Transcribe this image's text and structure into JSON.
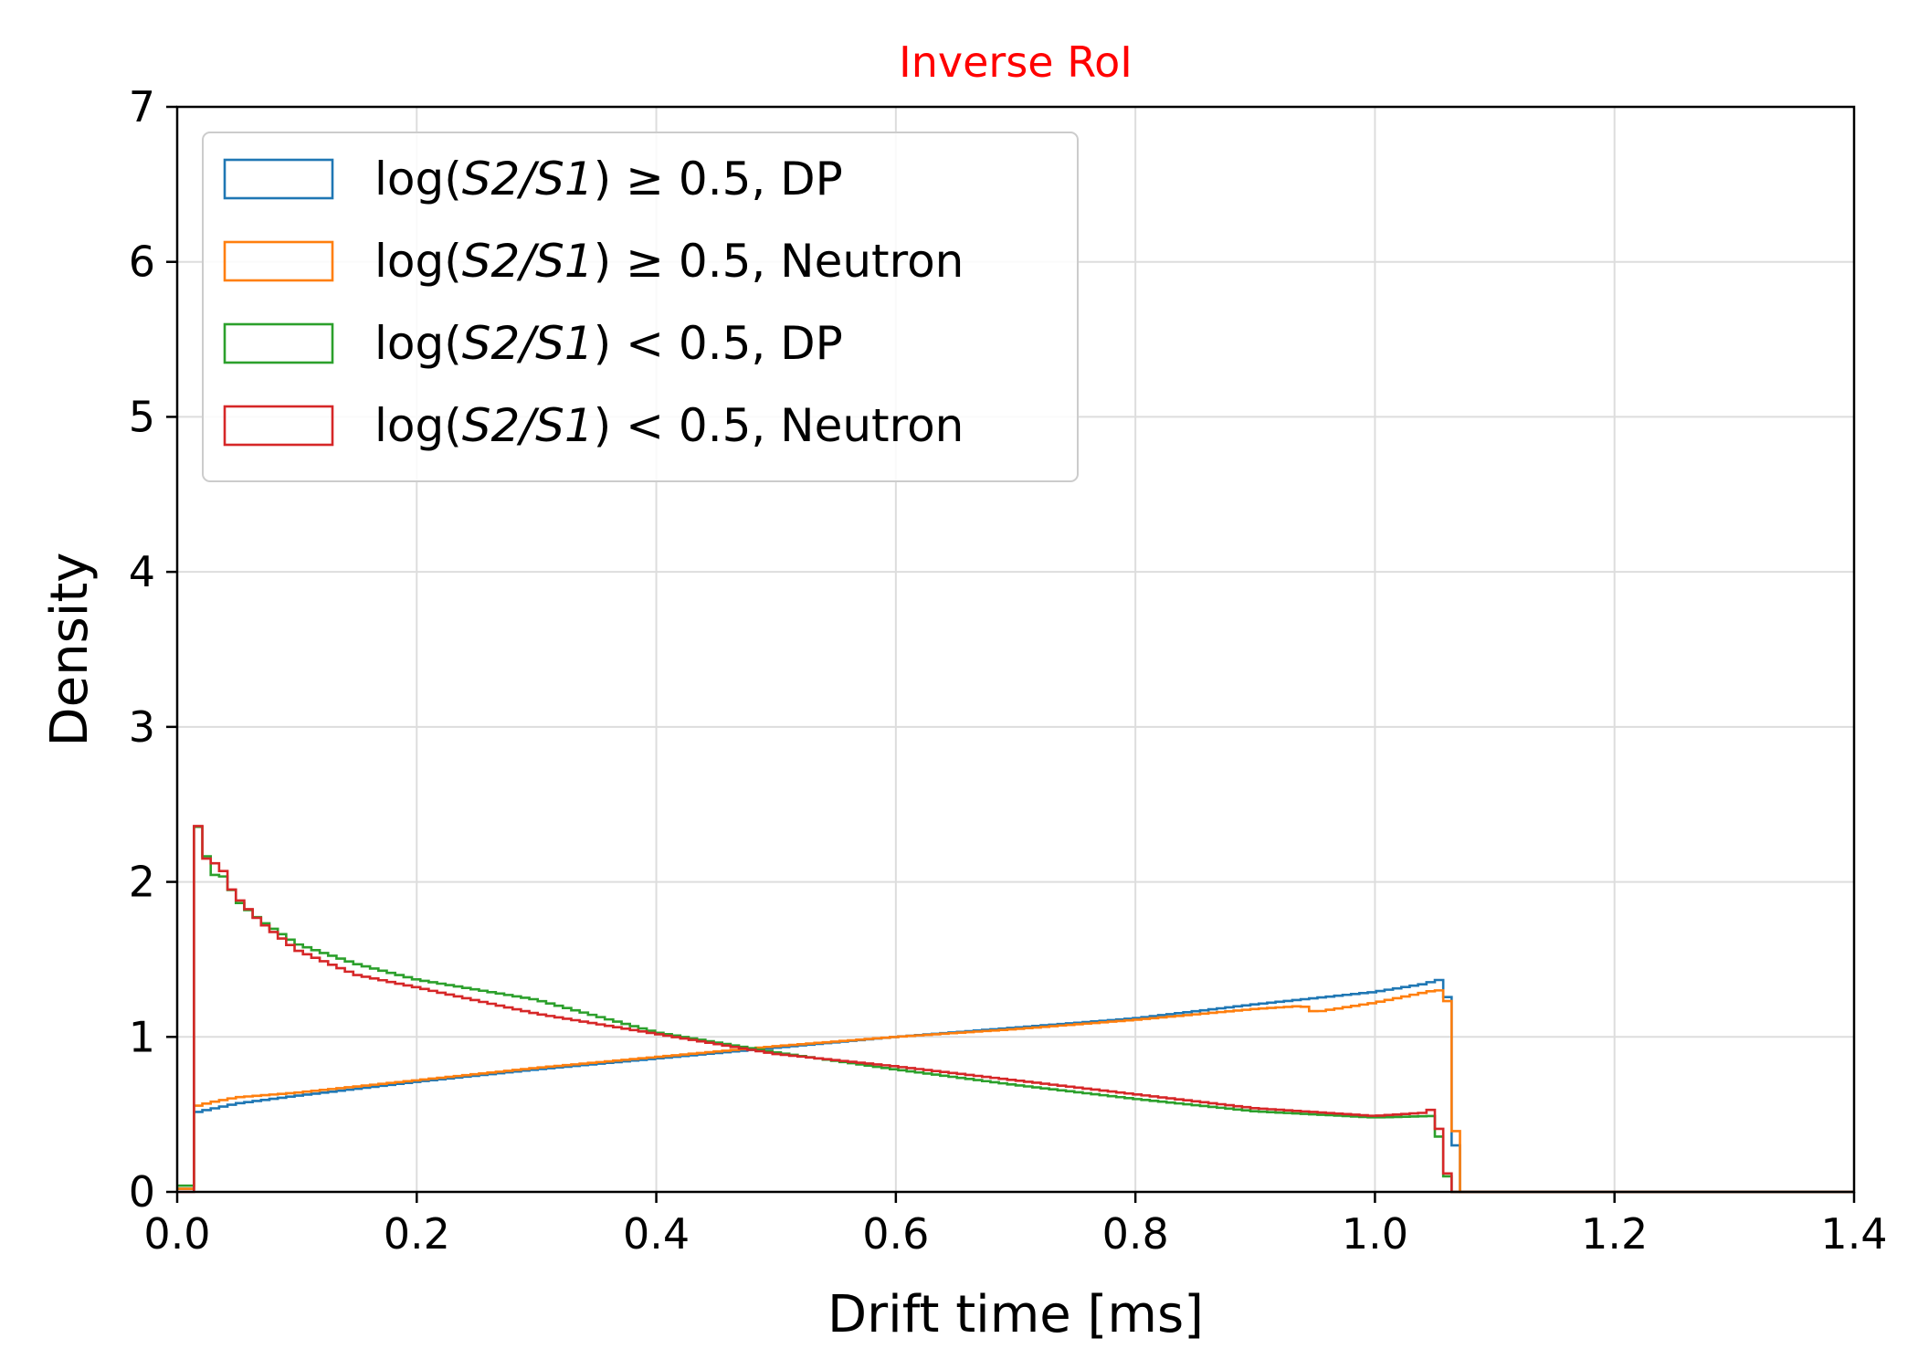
{
  "chart_data": {
    "type": "histogram-step",
    "title": "Inverse RoI",
    "xlabel": "Drift time [ms]",
    "ylabel": "Density",
    "xlim": [
      0,
      1.4
    ],
    "ylim": [
      0,
      7
    ],
    "xticks": [
      0.0,
      0.2,
      0.4,
      0.6,
      0.8,
      1.0,
      1.2,
      1.4
    ],
    "xtick_labels": [
      "0.0",
      "0.2",
      "0.4",
      "0.6",
      "0.8",
      "1.0",
      "1.2",
      "1.4"
    ],
    "yticks": [
      0,
      1,
      2,
      3,
      4,
      5,
      6,
      7
    ],
    "ytick_labels": [
      "0",
      "1",
      "2",
      "3",
      "4",
      "5",
      "6",
      "7"
    ],
    "grid": true,
    "legend_position": "top-left",
    "bin_width": 0.007,
    "colors": {
      "title": "#ff0000",
      "series_1": "#1f77b4",
      "series_2": "#ff7f0e",
      "series_3": "#2ca02c",
      "series_4": "#d62728"
    },
    "series": [
      {
        "name_prefix": "log(",
        "name_math": "S2/S1",
        "name_suffix": ") ≥ 0.5, DP",
        "color": "#1f77b4",
        "points": [
          [
            0,
            0.02
          ],
          [
            0.014,
            0.02
          ],
          [
            0.014,
            0.51
          ],
          [
            0.05,
            0.57
          ],
          [
            0.1,
            0.62
          ],
          [
            0.2,
            0.71
          ],
          [
            0.3,
            0.79
          ],
          [
            0.4,
            0.86
          ],
          [
            0.5,
            0.93
          ],
          [
            0.6,
            1.0
          ],
          [
            0.7,
            1.06
          ],
          [
            0.8,
            1.12
          ],
          [
            0.9,
            1.21
          ],
          [
            1.0,
            1.29
          ],
          [
            1.04,
            1.34
          ],
          [
            1.055,
            1.37
          ],
          [
            1.06,
            1.33
          ],
          [
            1.065,
            0.6
          ],
          [
            1.07,
            0.0
          ],
          [
            1.4,
            0.0
          ]
        ]
      },
      {
        "name_prefix": "log(",
        "name_math": "S2/S1",
        "name_suffix": ") ≥ 0.5, Neutron",
        "color": "#ff7f0e",
        "points": [
          [
            0,
            0.02
          ],
          [
            0.014,
            0.02
          ],
          [
            0.014,
            0.55
          ],
          [
            0.03,
            0.58
          ],
          [
            0.05,
            0.61
          ],
          [
            0.1,
            0.64
          ],
          [
            0.2,
            0.72
          ],
          [
            0.3,
            0.8
          ],
          [
            0.4,
            0.87
          ],
          [
            0.5,
            0.94
          ],
          [
            0.6,
            1.0
          ],
          [
            0.7,
            1.05
          ],
          [
            0.8,
            1.11
          ],
          [
            0.9,
            1.18
          ],
          [
            0.94,
            1.2
          ],
          [
            0.95,
            1.16
          ],
          [
            1.0,
            1.22
          ],
          [
            1.05,
            1.3
          ],
          [
            1.06,
            1.3
          ],
          [
            1.065,
            0.61
          ],
          [
            1.072,
            0.0
          ],
          [
            1.4,
            0.0
          ]
        ]
      },
      {
        "name_prefix": "log(",
        "name_math": "S2/S1",
        "name_suffix": ") < 0.5, DP",
        "color": "#2ca02c",
        "points": [
          [
            0,
            0.04
          ],
          [
            0.014,
            0.04
          ],
          [
            0.014,
            2.4
          ],
          [
            0.021,
            2.31
          ],
          [
            0.028,
            2.02
          ],
          [
            0.035,
            2.07
          ],
          [
            0.042,
            2.0
          ],
          [
            0.05,
            1.88
          ],
          [
            0.07,
            1.75
          ],
          [
            0.1,
            1.6
          ],
          [
            0.15,
            1.47
          ],
          [
            0.2,
            1.37
          ],
          [
            0.3,
            1.24
          ],
          [
            0.4,
            1.03
          ],
          [
            0.5,
            0.9
          ],
          [
            0.6,
            0.79
          ],
          [
            0.7,
            0.69
          ],
          [
            0.8,
            0.6
          ],
          [
            0.9,
            0.52
          ],
          [
            1.0,
            0.48
          ],
          [
            1.05,
            0.49
          ],
          [
            1.055,
            0.3
          ],
          [
            1.06,
            0.11
          ],
          [
            1.066,
            0.0
          ],
          [
            1.4,
            0.0
          ]
        ]
      },
      {
        "name_prefix": "log(",
        "name_math": "S2/S1",
        "name_suffix": ") < 0.5, Neutron",
        "color": "#d62728",
        "points": [
          [
            0,
            0.0
          ],
          [
            0.014,
            0.0
          ],
          [
            0.014,
            2.51
          ],
          [
            0.021,
            2.21
          ],
          [
            0.028,
            2.09
          ],
          [
            0.035,
            2.15
          ],
          [
            0.042,
            1.99
          ],
          [
            0.05,
            1.9
          ],
          [
            0.07,
            1.74
          ],
          [
            0.1,
            1.56
          ],
          [
            0.15,
            1.4
          ],
          [
            0.2,
            1.32
          ],
          [
            0.3,
            1.15
          ],
          [
            0.4,
            1.02
          ],
          [
            0.5,
            0.89
          ],
          [
            0.6,
            0.81
          ],
          [
            0.7,
            0.72
          ],
          [
            0.8,
            0.63
          ],
          [
            0.9,
            0.54
          ],
          [
            1.0,
            0.49
          ],
          [
            1.04,
            0.51
          ],
          [
            1.05,
            0.54
          ],
          [
            1.055,
            0.35
          ],
          [
            1.06,
            0.13
          ],
          [
            1.066,
            0.0
          ],
          [
            1.4,
            0.0
          ]
        ]
      }
    ]
  }
}
